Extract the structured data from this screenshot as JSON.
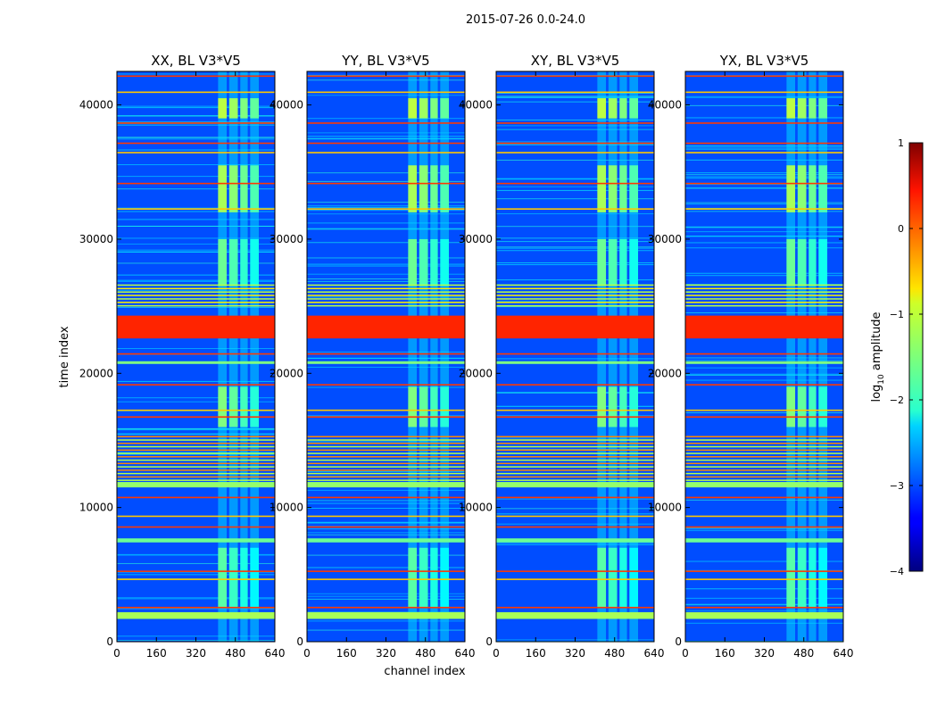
{
  "chart_data": {
    "type": "heatmap",
    "suptitle": "2015-07-26 0.0-24.0",
    "xlabel": "channel index",
    "ylabel": "time index",
    "xlim": [
      0,
      640
    ],
    "ylim": [
      0,
      42500
    ],
    "xticks": [
      0,
      160,
      320,
      480,
      640
    ],
    "yticks": [
      0,
      10000,
      20000,
      30000,
      40000
    ],
    "colorbar": {
      "label": "log10 amplitude",
      "label_base": "log",
      "label_sub": "10",
      "label_rest": " amplitude",
      "range": [
        -4,
        1
      ],
      "ticks": [
        1,
        0,
        -1,
        -2,
        -3,
        -4
      ],
      "tick_labels": [
        "1",
        "0",
        "−1",
        "−2",
        "−3",
        "−4"
      ]
    },
    "background_level": -3.0,
    "rfi_channel_blocks": [
      [
        410,
        445
      ],
      [
        455,
        490
      ],
      [
        500,
        530
      ],
      [
        540,
        575
      ]
    ],
    "rfi_time_blocks": [
      {
        "t": [
          2500,
          7000
        ],
        "level": -1.7
      },
      {
        "t": [
          16000,
          19000
        ],
        "level": -1.5
      },
      {
        "t": [
          26500,
          30000
        ],
        "level": -1.6
      },
      {
        "t": [
          32000,
          35500
        ],
        "level": -1.3
      },
      {
        "t": [
          39000,
          40500
        ],
        "level": -1.2
      }
    ],
    "flagged_time_bands": [
      {
        "t": [
          1700,
          2200
        ],
        "level": -1.3
      },
      {
        "t": [
          22600,
          24300
        ],
        "level": 0.2
      },
      {
        "t": [
          12000,
          15500
        ],
        "level": -0.3,
        "striped": true
      },
      {
        "t": [
          20700,
          20900
        ],
        "level": -1.5
      },
      {
        "t": [
          25000,
          26800
        ],
        "level": -0.8,
        "striped": true
      },
      {
        "t": [
          7400,
          7700
        ],
        "level": -1.6
      },
      {
        "t": [
          11500,
          11900
        ],
        "level": -1.4
      }
    ],
    "panels": [
      {
        "title": "XX, BL V3*V5",
        "pol": "XX",
        "baseline": "V3*V5"
      },
      {
        "title": "YY, BL V3*V5",
        "pol": "YY",
        "baseline": "V3*V5"
      },
      {
        "title": "XY, BL V3*V5",
        "pol": "XY",
        "baseline": "V3*V5"
      },
      {
        "title": "YX, BL V3*V5",
        "pol": "YX",
        "baseline": "V3*V5"
      }
    ]
  }
}
